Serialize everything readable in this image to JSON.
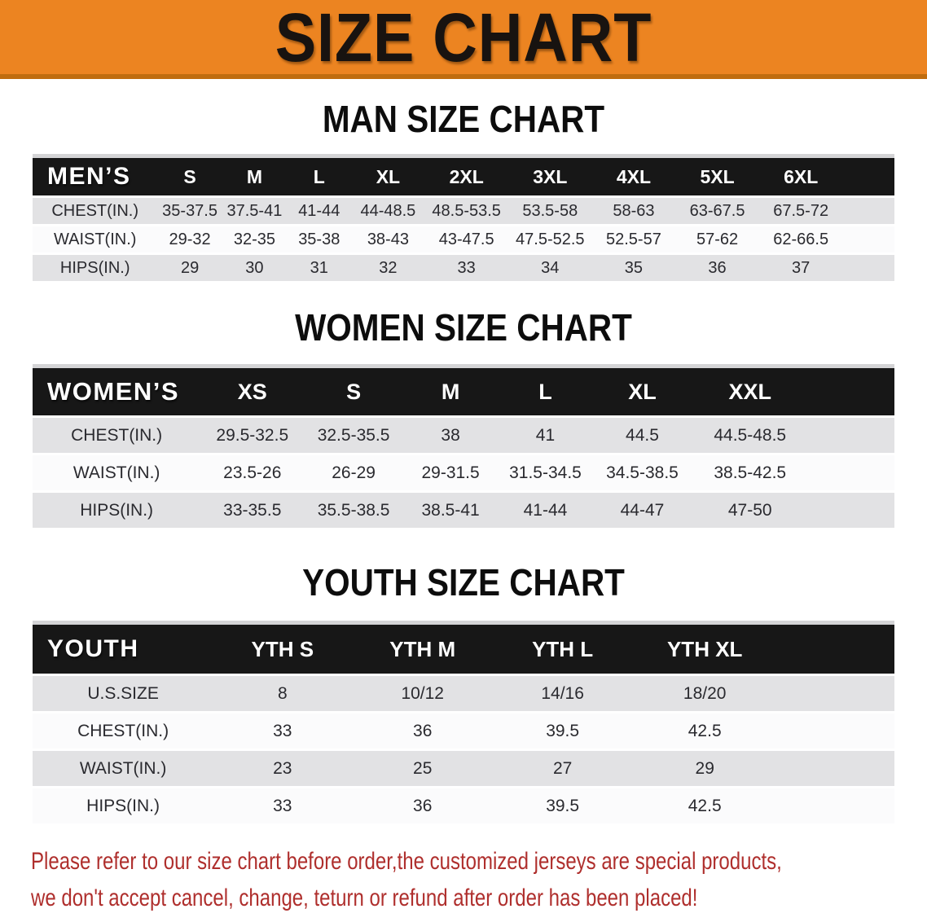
{
  "banner": {
    "title": "SIZE CHART"
  },
  "colors": {
    "banner_orange": "#EC8421",
    "banner_edge": "#C06C0E",
    "header_black": "#171717",
    "row_gray": "#E2E2E4",
    "row_white": "#FBFBFC",
    "note_red": "#AF2F2D"
  },
  "sections": [
    {
      "heading": "MAN SIZE CHART",
      "table": {
        "label": "MEN’S",
        "columns": [
          "S",
          "M",
          "L",
          "XL",
          "2XL",
          "3XL",
          "4XL",
          "5XL",
          "6XL"
        ],
        "rows": [
          {
            "label": "CHEST(IN.)",
            "values": [
              "35-37.5",
              "37.5-41",
              "41-44",
              "44-48.5",
              "48.5-53.5",
              "53.5-58",
              "58-63",
              "63-67.5",
              "67.5-72"
            ]
          },
          {
            "label": "WAIST(IN.)",
            "values": [
              "29-32",
              "32-35",
              "35-38",
              "38-43",
              "43-47.5",
              "47.5-52.5",
              "52.5-57",
              "57-62",
              "62-66.5"
            ]
          },
          {
            "label": "HIPS(IN.)",
            "values": [
              "29",
              "30",
              "31",
              "32",
              "33",
              "34",
              "35",
              "36",
              "37"
            ]
          }
        ]
      }
    },
    {
      "heading": "WOMEN SIZE CHART",
      "table": {
        "label": "WOMEN’S",
        "columns": [
          "XS",
          "S",
          "M",
          "L",
          "XL",
          "XXL"
        ],
        "rows": [
          {
            "label": "CHEST(IN.)",
            "values": [
              "29.5-32.5",
              "32.5-35.5",
              "38",
              "41",
              "44.5",
              "44.5-48.5"
            ]
          },
          {
            "label": "WAIST(IN.)",
            "values": [
              "23.5-26",
              "26-29",
              "29-31.5",
              "31.5-34.5",
              "34.5-38.5",
              "38.5-42.5"
            ]
          },
          {
            "label": "HIPS(IN.)",
            "values": [
              "33-35.5",
              "35.5-38.5",
              "38.5-41",
              "41-44",
              "44-47",
              "47-50"
            ]
          }
        ]
      }
    },
    {
      "heading": "YOUTH SIZE CHART",
      "table": {
        "label": "YOUTH",
        "columns": [
          "YTH S",
          "YTH M",
          "YTH L",
          "YTH XL"
        ],
        "rows": [
          {
            "label": "U.S.SIZE",
            "values": [
              "8",
              "10/12",
              "14/16",
              "18/20"
            ]
          },
          {
            "label": "CHEST(IN.)",
            "values": [
              "33",
              "36",
              "39.5",
              "42.5"
            ]
          },
          {
            "label": "WAIST(IN.)",
            "values": [
              "23",
              "25",
              "27",
              "29"
            ]
          },
          {
            "label": "HIPS(IN.)",
            "values": [
              "33",
              "36",
              "39.5",
              "42.5"
            ]
          }
        ]
      }
    }
  ],
  "note": {
    "line1": "Please refer to our size chart before order,the customized jerseys are special products,",
    "line2": "we don't accept cancel, change, teturn or refund after order has been placed!"
  }
}
